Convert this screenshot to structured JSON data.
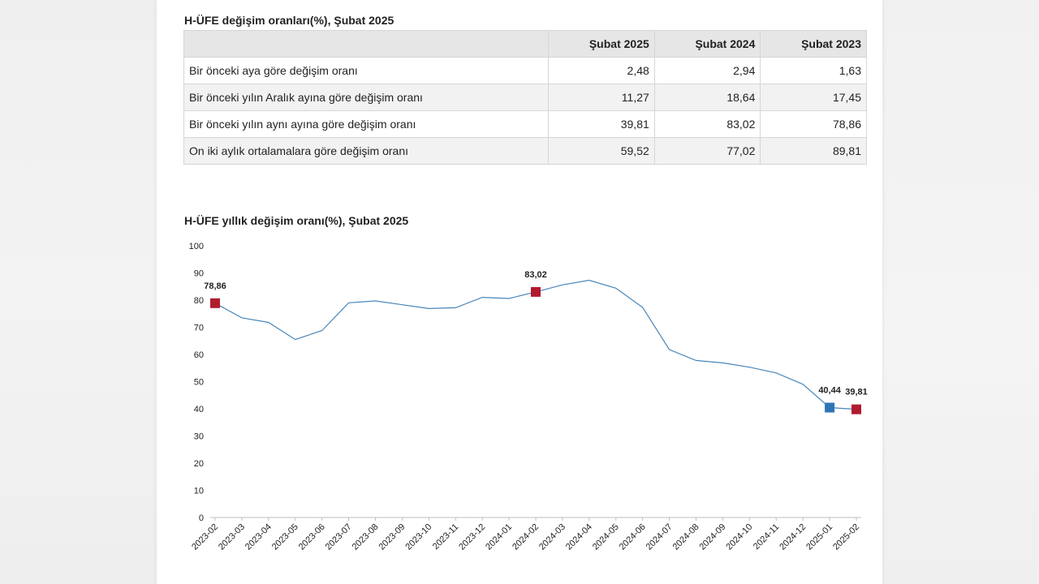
{
  "table": {
    "title": "H-ÜFE değişim oranları(%), Şubat 2025",
    "headers": [
      "",
      "Şubat 2025",
      "Şubat 2024",
      "Şubat 2023"
    ],
    "rows": [
      {
        "label": "Bir önceki aya göre değişim oranı",
        "values": [
          "2,48",
          "2,94",
          "1,63"
        ]
      },
      {
        "label": "Bir önceki yılın Aralık ayına göre değişim oranı",
        "values": [
          "11,27",
          "18,64",
          "17,45"
        ]
      },
      {
        "label": "Bir önceki yılın aynı ayına göre değişim oranı",
        "values": [
          "39,81",
          "83,02",
          "78,86"
        ]
      },
      {
        "label": "On iki aylık ortalamalara göre değişim oranı",
        "values": [
          "59,52",
          "77,02",
          "89,81"
        ]
      }
    ]
  },
  "chart_data": {
    "type": "line",
    "title": "H-ÜFE yıllık değişim oranı(%), Şubat 2025",
    "xlabel": "",
    "ylabel": "",
    "ylim": [
      0,
      100
    ],
    "yticks": [
      0,
      10,
      20,
      30,
      40,
      50,
      60,
      70,
      80,
      90,
      100
    ],
    "grid": false,
    "legend": "none",
    "line_color": "#4a86b8",
    "categories": [
      "2023-02",
      "2023-03",
      "2023-04",
      "2023-05",
      "2023-06",
      "2023-07",
      "2023-08",
      "2023-09",
      "2023-10",
      "2023-11",
      "2023-12",
      "2024-01",
      "2024-02",
      "2024-03",
      "2024-04",
      "2024-05",
      "2024-06",
      "2024-07",
      "2024-08",
      "2024-09",
      "2024-10",
      "2024-11",
      "2024-12",
      "2025-01",
      "2025-02"
    ],
    "series": [
      {
        "values": [
          78.86,
          73.5,
          71.8,
          65.5,
          68.8,
          79.0,
          79.7,
          78.3,
          76.9,
          77.2,
          81.0,
          80.6,
          83.02,
          85.6,
          87.3,
          84.4,
          77.3,
          61.8,
          57.8,
          56.9,
          55.3,
          53.2,
          49.0,
          40.44,
          39.81
        ]
      }
    ],
    "highlights": [
      {
        "index": 0,
        "label": "78,86",
        "color": "#b01c2e"
      },
      {
        "index": 12,
        "label": "83,02",
        "color": "#b01c2e"
      },
      {
        "index": 23,
        "label": "40,44",
        "color": "#2e75b6"
      },
      {
        "index": 24,
        "label": "39,81",
        "color": "#b01c2e"
      }
    ]
  }
}
